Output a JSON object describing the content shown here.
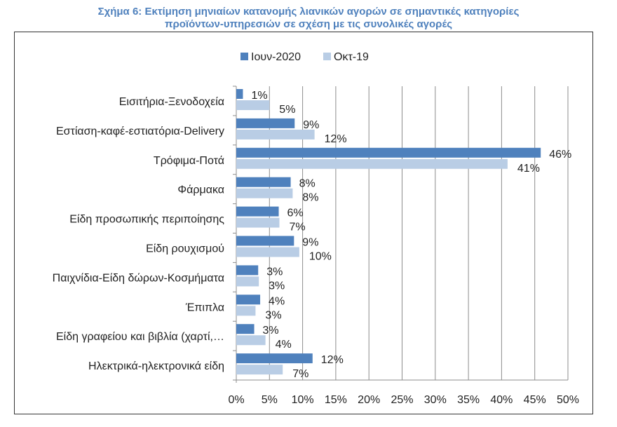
{
  "chart_data": {
    "type": "bar",
    "orientation": "horizontal",
    "title_line1": "Σχήμα 6: Εκτίμηση μηνιαίων κατανομής λιανικών αγορών σε σημαντικές κατηγορίες",
    "title_line2": "προϊόντων-υπηρεσιών σε σχέση με τις συνολικές αγορές",
    "categories": [
      "Εισιτήρια-Ξενοδοχεία",
      "Εστίαση-καφέ-εστιατόρια-Delivery",
      "Τρόφιμα-Ποτά",
      "Φάρμακα",
      "Είδη προσωπικής περιποίησης",
      "Είδη ρουχισμού",
      "Παιχνίδια-Είδη δώρων-Κοσμήματα",
      "Έπιπλα",
      "Είδη γραφείου και βιβλία (χαρτί,…",
      "Ηλεκτρικά-ηλεκτρονικά είδη"
    ],
    "series": [
      {
        "name": "Ιουν-2020",
        "color": "#4f81bd",
        "values": [
          1.0,
          8.8,
          45.9,
          8.2,
          6.4,
          8.7,
          3.3,
          3.6,
          2.7,
          11.5
        ],
        "labels": [
          "1%",
          "9%",
          "46%",
          "8%",
          "6%",
          "9%",
          "3%",
          "4%",
          "3%",
          "12%"
        ]
      },
      {
        "name": "Οκτ-19",
        "color": "#b9cde5",
        "values": [
          5.0,
          11.8,
          40.9,
          8.5,
          6.5,
          9.5,
          3.4,
          2.9,
          4.4,
          7.0
        ],
        "labels": [
          "5%",
          "12%",
          "41%",
          "8%",
          "7%",
          "10%",
          "3%",
          "3%",
          "4%",
          "7%"
        ]
      }
    ],
    "xlim": [
      0,
      50
    ],
    "xticks": [
      "0%",
      "5%",
      "10%",
      "15%",
      "20%",
      "25%",
      "30%",
      "35%",
      "40%",
      "45%",
      "50%"
    ],
    "grid": "vertical",
    "legend": "top"
  }
}
